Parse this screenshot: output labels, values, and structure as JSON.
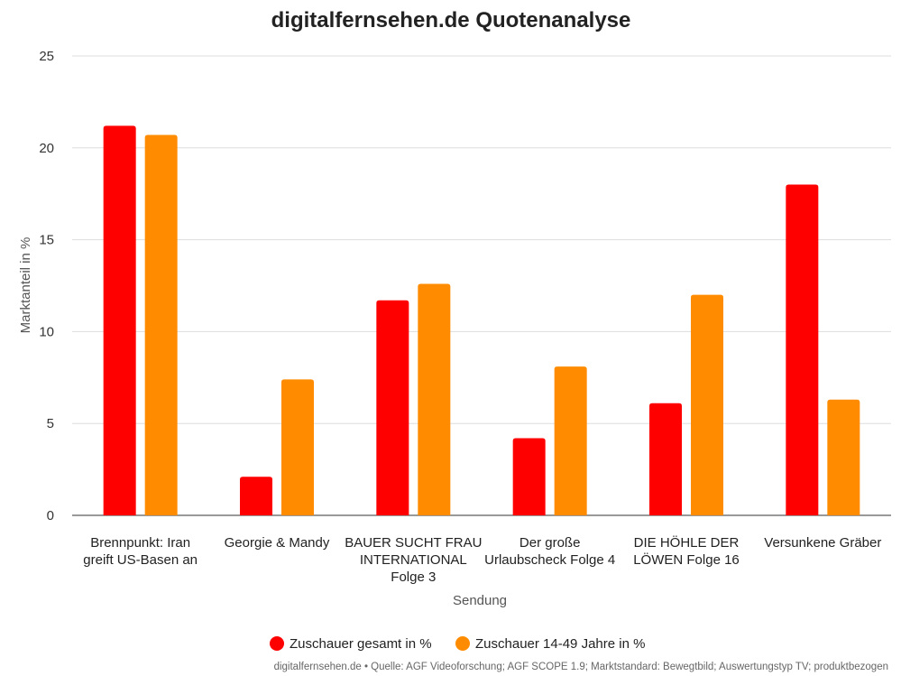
{
  "chart_data": {
    "type": "bar",
    "title": "digitalfernsehen.de Quotenanalyse",
    "xlabel": "Sendung",
    "ylabel": "Marktanteil in %",
    "ylim": [
      0,
      25
    ],
    "yticks": [
      0,
      5,
      10,
      15,
      20,
      25
    ],
    "grid": true,
    "legend_position": "bottom",
    "categories": [
      [
        "Brennpunkt: Iran",
        "greift US-Basen an"
      ],
      [
        "Georgie & Mandy"
      ],
      [
        "BAUER SUCHT FRAU",
        "INTERNATIONAL",
        "Folge 3"
      ],
      [
        "Der große",
        "Urlaubscheck Folge 4"
      ],
      [
        "DIE HÖHLE DER",
        "LÖWEN Folge 16"
      ],
      [
        "Versunkene Gräber"
      ]
    ],
    "series": [
      {
        "name": "Zuschauer gesamt in %",
        "color": "#ff0000",
        "values": [
          21.2,
          2.1,
          11.7,
          4.2,
          6.1,
          18.0
        ]
      },
      {
        "name": "Zuschauer 14-49 Jahre in %",
        "color": "#ff8c00",
        "values": [
          20.7,
          7.4,
          12.6,
          8.1,
          12.0,
          6.3
        ]
      }
    ],
    "source": "digitalfernsehen.de • Quelle: AGF Videoforschung; AGF SCOPE 1.9; Marktstandard: Bewegtbild; Auswertungstyp TV; produktbezogen"
  }
}
